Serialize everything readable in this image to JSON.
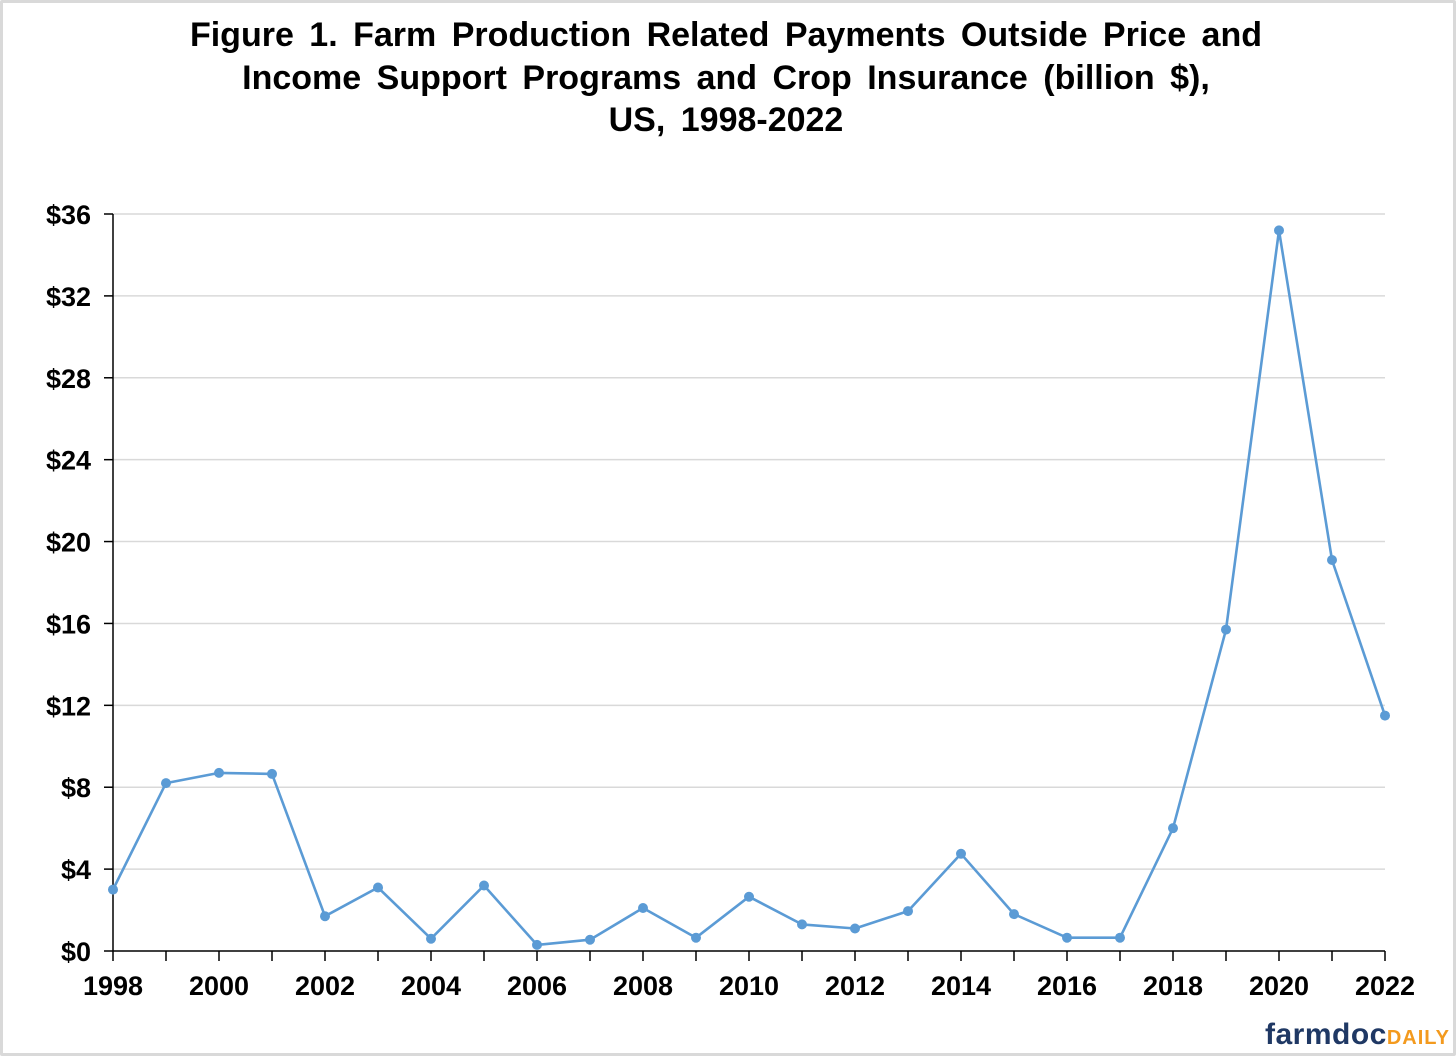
{
  "chart_data": {
    "type": "line",
    "title_lines": [
      "Figure 1. Farm Production Related Payments Outside Price and",
      "Income Support Programs and Crop Insurance (billion $),",
      "US, 1998-2022"
    ],
    "xlabel": "",
    "ylabel": "",
    "x": [
      1998,
      1999,
      2000,
      2001,
      2002,
      2003,
      2004,
      2005,
      2006,
      2007,
      2008,
      2009,
      2010,
      2011,
      2012,
      2013,
      2014,
      2015,
      2016,
      2017,
      2018,
      2019,
      2020,
      2021,
      2022
    ],
    "series": [
      {
        "name": "Payments (billion $)",
        "color": "#5b9bd5",
        "values": [
          3.0,
          8.2,
          8.7,
          8.65,
          1.7,
          3.1,
          0.6,
          3.2,
          0.3,
          0.55,
          2.1,
          0.65,
          2.65,
          1.3,
          1.1,
          1.95,
          4.75,
          1.8,
          0.65,
          0.65,
          6.0,
          15.7,
          35.2,
          19.1,
          11.5
        ]
      }
    ],
    "xlim": [
      1998,
      2022
    ],
    "ylim": [
      0,
      36
    ],
    "y_ticks": [
      0,
      4,
      8,
      12,
      16,
      20,
      24,
      28,
      32,
      36
    ],
    "y_tick_labels": [
      "$0",
      "$4",
      "$8",
      "$12",
      "$16",
      "$20",
      "$24",
      "$28",
      "$32",
      "$36"
    ],
    "x_tick_labels": [
      "1998",
      "2000",
      "2002",
      "2004",
      "2006",
      "2008",
      "2010",
      "2012",
      "2014",
      "2016",
      "2018",
      "2020",
      "2022"
    ],
    "grid": true,
    "legend": "none"
  },
  "branding": {
    "logo_main": "farmdoc",
    "logo_accent": "DAILY",
    "logo_main_color": "#1f3864",
    "logo_accent_color": "#f39a1e"
  },
  "colors": {
    "gridline": "#d9d9d9",
    "axis": "#000000",
    "line": "#5b9bd5"
  }
}
